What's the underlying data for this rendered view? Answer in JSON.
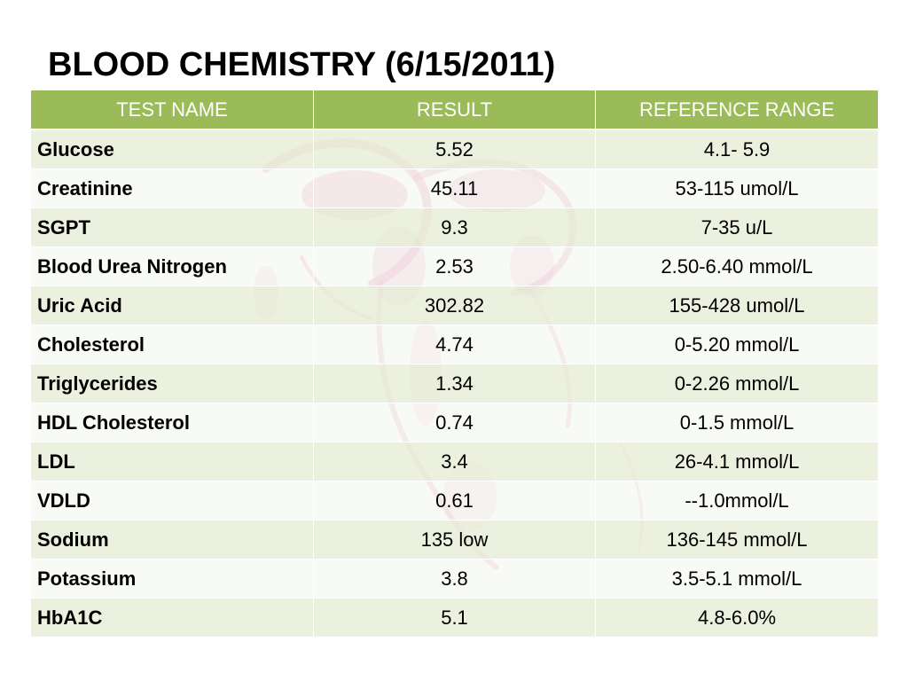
{
  "slide": {
    "title": "BLOOD CHEMISTRY (6/15/2011)"
  },
  "colors": {
    "header_green": "#9bbb59",
    "row_band": "#e7eed7",
    "row_light": "#f3f6ed",
    "watermark_pink": "#e98fbf"
  },
  "table": {
    "headers": [
      "TEST NAME",
      "RESULT",
      "REFERENCE RANGE"
    ],
    "rows": [
      {
        "name": "Glucose",
        "result": "5.52",
        "range": "4.1- 5.9"
      },
      {
        "name": "Creatinine",
        "result": "45.11",
        "range": "53-115 umol/L"
      },
      {
        "name": "SGPT",
        "result": "9.3",
        "range": "7-35 u/L"
      },
      {
        "name": "Blood Urea Nitrogen",
        "result": "2.53",
        "range": "2.50-6.40 mmol/L"
      },
      {
        "name": "Uric Acid",
        "result": "302.82",
        "range": "155-428 umol/L"
      },
      {
        "name": "Cholesterol",
        "result": "4.74",
        "range": "0-5.20 mmol/L"
      },
      {
        "name": "Triglycerides",
        "result": "1.34",
        "range": "0-2.26 mmol/L"
      },
      {
        "name": "HDL Cholesterol",
        "result": "0.74",
        "range": "0-1.5 mmol/L"
      },
      {
        "name": "LDL",
        "result": "3.4",
        "range": "26-4.1 mmol/L"
      },
      {
        "name": "VDLD",
        "result": "0.61",
        "range": "--1.0mmol/L"
      },
      {
        "name": "Sodium",
        "result": "135 low",
        "range": "136-145 mmol/L"
      },
      {
        "name": "Potassium",
        "result": "3.8",
        "range": "3.5-5.1 mmol/L"
      },
      {
        "name": "HbA1C",
        "result": "5.1",
        "range": "4.8-6.0%"
      }
    ]
  }
}
